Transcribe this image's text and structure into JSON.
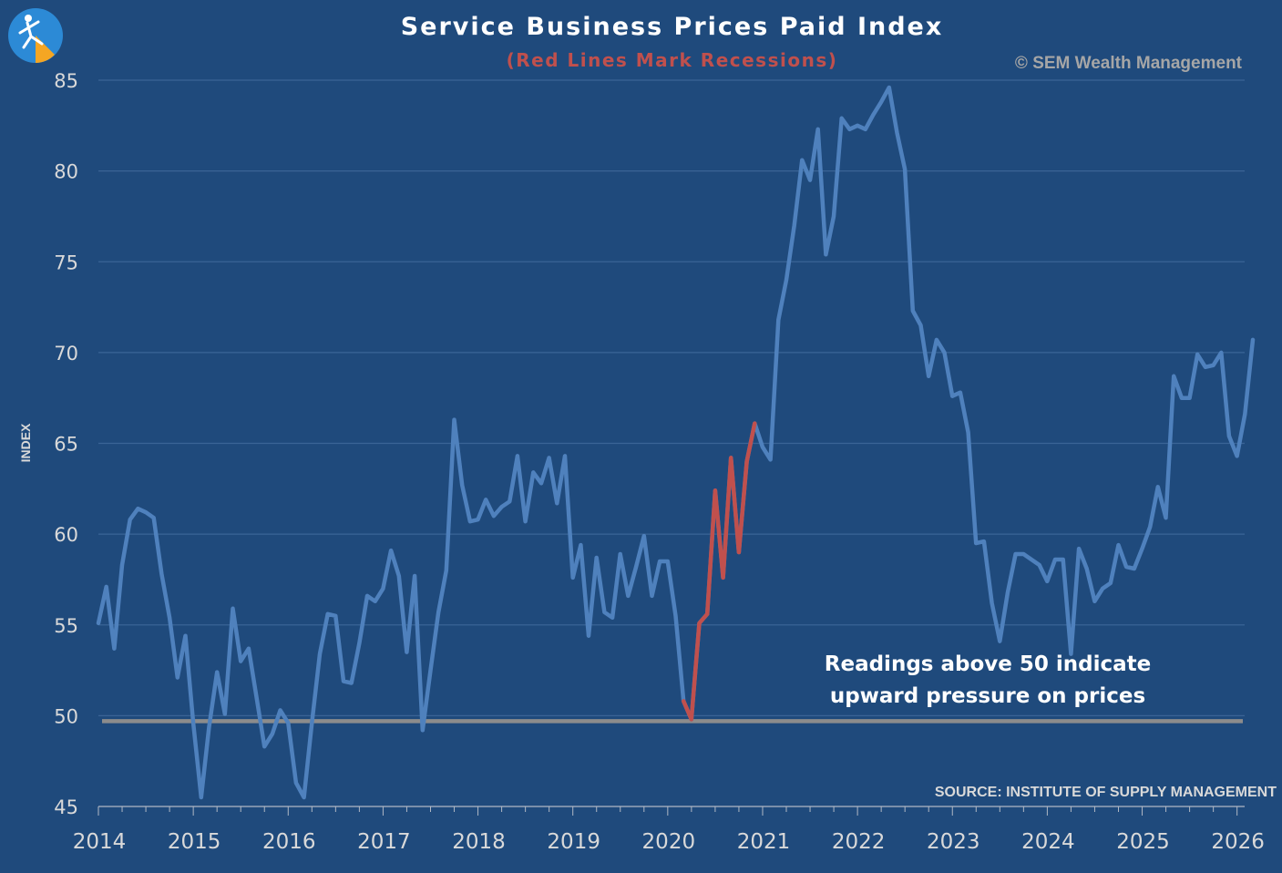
{
  "header": {
    "title": "Service Business Prices Paid Index",
    "subtitle": "(Red Lines Mark Recessions)",
    "copyright": "© SEM Wealth Management"
  },
  "annotation": {
    "line1": "Readings above 50 indicate",
    "line2": "upward pressure on prices"
  },
  "source": "SOURCE:  INSTITUTE OF SUPPLY MANAGEMENT",
  "chart_data": {
    "type": "line",
    "title": "Service Business Prices Paid Index",
    "subtitle": "(Red Lines Mark Recessions)",
    "xlabel": "",
    "ylabel": "INDEX",
    "ylim": [
      45,
      85
    ],
    "yticks": [
      45,
      50,
      55,
      60,
      65,
      70,
      75,
      80,
      85
    ],
    "xlim": [
      2014,
      2026.08
    ],
    "xticks": [
      2014,
      2015,
      2016,
      2017,
      2018,
      2019,
      2020,
      2021,
      2022,
      2023,
      2024,
      2025,
      2026
    ],
    "grid": true,
    "colors": {
      "background": "#1f4a7c",
      "series": "#4f81bd",
      "recession": "#c0504d",
      "reference": "#8c8c8c",
      "grid": "#3a6496",
      "text": "#d9d9d9"
    },
    "reference_line": {
      "value": 49.7,
      "label": "50 threshold"
    },
    "recession": {
      "start_index": 74,
      "end_index": 83
    },
    "series": [
      {
        "name": "Prices Paid Index",
        "start": 2014.0,
        "step": 0.08333,
        "values": [
          55.1,
          57.1,
          53.7,
          58.3,
          60.8,
          61.4,
          61.2,
          60.9,
          57.8,
          55.4,
          52.1,
          54.4,
          49.6,
          45.5,
          49.4,
          52.4,
          50.1,
          55.9,
          53.0,
          53.7,
          51.0,
          48.3,
          49.0,
          50.3,
          49.6,
          46.3,
          45.5,
          49.6,
          53.4,
          55.6,
          55.5,
          51.9,
          51.8,
          54.0,
          56.6,
          56.3,
          57.0,
          59.1,
          57.7,
          53.5,
          57.7,
          49.2,
          52.5,
          55.7,
          58.0,
          66.3,
          62.7,
          60.7,
          60.8,
          61.9,
          61.0,
          61.5,
          61.8,
          64.3,
          60.7,
          63.4,
          62.8,
          64.2,
          61.7,
          64.3,
          57.6,
          59.4,
          54.4,
          58.7,
          55.7,
          55.4,
          58.9,
          56.6,
          58.2,
          59.9,
          56.6,
          58.5,
          58.5,
          55.5,
          50.8,
          49.8,
          55.1,
          55.6,
          62.4,
          57.6,
          64.2,
          59.0,
          64.0,
          66.1,
          64.8,
          64.1,
          71.8,
          74.0,
          77.0,
          80.6,
          79.5,
          82.3,
          75.4,
          77.5,
          82.9,
          82.3,
          82.5,
          82.3,
          83.1,
          83.8,
          84.6,
          82.1,
          80.1,
          72.3,
          71.5,
          68.7,
          70.7,
          70.0,
          67.6,
          67.8,
          65.6,
          59.5,
          59.6,
          56.2,
          54.1,
          56.8,
          58.9,
          58.9,
          58.6,
          58.3,
          57.4,
          58.6,
          58.6,
          53.4,
          59.2,
          58.1,
          56.3,
          57.0,
          57.3,
          59.4,
          58.2,
          58.1,
          59.2,
          60.4,
          62.6,
          60.9,
          68.7,
          67.5,
          67.5,
          69.9,
          69.2,
          69.3,
          70.0,
          65.4,
          64.3,
          66.6,
          70.7
        ]
      }
    ]
  }
}
